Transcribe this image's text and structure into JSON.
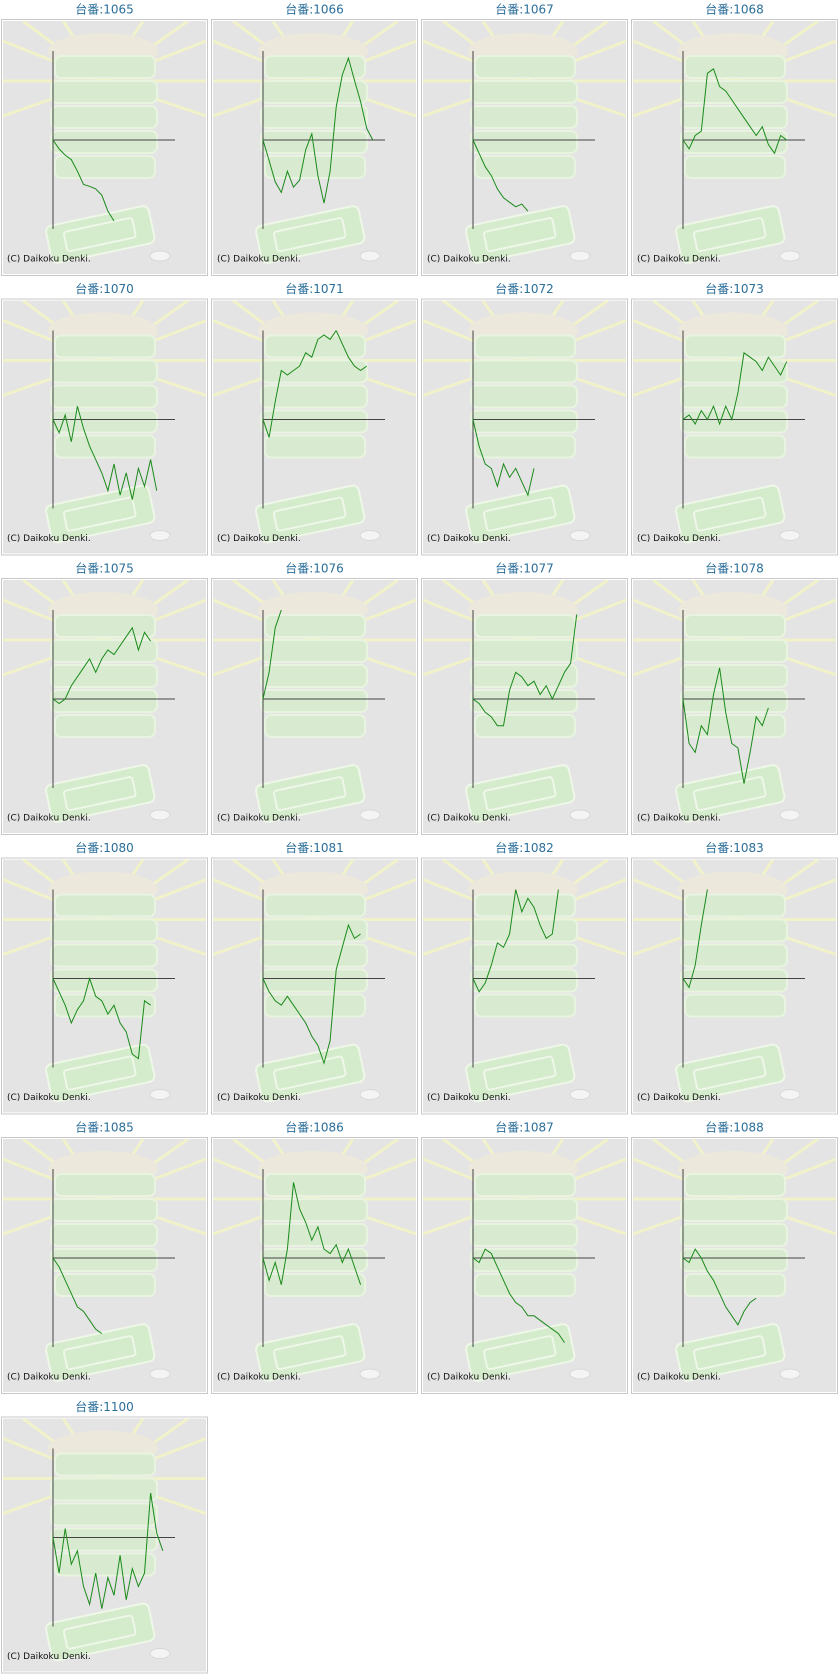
{
  "chart_data": [
    {
      "type": "line",
      "title": "台番:1065",
      "x": [
        0,
        5,
        10,
        15,
        20,
        25,
        30,
        35,
        40,
        45,
        50
      ],
      "values": [
        0,
        -10,
        -17,
        -22,
        -35,
        -50,
        -52,
        -55,
        -62,
        -80,
        -91
      ],
      "xlim": [
        0,
        100
      ],
      "ylim": [
        -100,
        100
      ],
      "color": "#1a8a1a",
      "credit": "(C) Daikoku Denki."
    },
    {
      "type": "line",
      "title": "台番:1066",
      "x": [
        0,
        5,
        10,
        15,
        20,
        25,
        30,
        35,
        40,
        45,
        50,
        55,
        60,
        65,
        70,
        75,
        80,
        85,
        90
      ],
      "values": [
        0,
        -23,
        -47,
        -59,
        -35,
        -53,
        -45,
        -11,
        7,
        -40,
        -71,
        -35,
        37,
        73,
        92,
        67,
        43,
        13,
        0
      ],
      "xlim": [
        0,
        100
      ],
      "ylim": [
        -100,
        100
      ],
      "color": "#1a8a1a",
      "credit": "(C) Daikoku Denki."
    },
    {
      "type": "line",
      "title": "台番:1067",
      "x": [
        0,
        5,
        10,
        15,
        20,
        25,
        30,
        35,
        40,
        45
      ],
      "values": [
        0,
        -15,
        -30,
        -40,
        -55,
        -65,
        -70,
        -75,
        -72,
        -80
      ],
      "xlim": [
        0,
        100
      ],
      "ylim": [
        -100,
        100
      ],
      "color": "#1a8a1a",
      "credit": "(C) Daikoku Denki."
    },
    {
      "type": "line",
      "title": "台番:1068",
      "x": [
        0,
        5,
        10,
        15,
        20,
        25,
        30,
        35,
        40,
        45,
        50,
        55,
        60,
        65,
        70,
        75,
        80,
        85
      ],
      "values": [
        0,
        -10,
        5,
        10,
        75,
        80,
        60,
        55,
        45,
        35,
        25,
        15,
        5,
        15,
        -5,
        -15,
        5,
        0
      ],
      "xlim": [
        0,
        100
      ],
      "ylim": [
        -100,
        100
      ],
      "color": "#1a8a1a",
      "credit": "(C) Daikoku Denki."
    },
    {
      "type": "line",
      "title": "台番:1070",
      "x": [
        0,
        5,
        10,
        15,
        20,
        25,
        30,
        35,
        40,
        45,
        50,
        55,
        60,
        65,
        70,
        75,
        80,
        85
      ],
      "values": [
        0,
        -15,
        5,
        -25,
        15,
        -10,
        -30,
        -45,
        -60,
        -80,
        -50,
        -85,
        -60,
        -90,
        -55,
        -75,
        -45,
        -80
      ],
      "xlim": [
        0,
        100
      ],
      "ylim": [
        -100,
        100
      ],
      "color": "#1a8a1a",
      "credit": "(C) Daikoku Denki."
    },
    {
      "type": "line",
      "title": "台番:1071",
      "x": [
        0,
        5,
        10,
        15,
        20,
        25,
        30,
        35,
        40,
        45,
        50,
        55,
        60,
        65,
        70,
        75,
        80,
        85
      ],
      "values": [
        0,
        -20,
        20,
        55,
        50,
        55,
        60,
        75,
        70,
        90,
        95,
        90,
        100,
        85,
        70,
        60,
        55,
        60
      ],
      "xlim": [
        0,
        100
      ],
      "ylim": [
        -100,
        100
      ],
      "color": "#1a8a1a",
      "credit": "(C) Daikoku Denki."
    },
    {
      "type": "line",
      "title": "台番:1072",
      "x": [
        0,
        5,
        10,
        15,
        20,
        25,
        30,
        35,
        40,
        45,
        50
      ],
      "values": [
        0,
        -30,
        -50,
        -55,
        -75,
        -50,
        -65,
        -55,
        -70,
        -85,
        -55
      ],
      "xlim": [
        0,
        100
      ],
      "ylim": [
        -100,
        100
      ],
      "color": "#1a8a1a",
      "credit": "(C) Daikoku Denki."
    },
    {
      "type": "line",
      "title": "台番:1073",
      "x": [
        0,
        5,
        10,
        15,
        20,
        25,
        30,
        35,
        40,
        45,
        50,
        55,
        60,
        65,
        70,
        75,
        80,
        85
      ],
      "values": [
        0,
        5,
        -5,
        10,
        0,
        15,
        -5,
        15,
        0,
        30,
        75,
        70,
        65,
        55,
        70,
        60,
        50,
        65
      ],
      "xlim": [
        0,
        100
      ],
      "ylim": [
        -100,
        100
      ],
      "color": "#1a8a1a",
      "credit": "(C) Daikoku Denki."
    },
    {
      "type": "line",
      "title": "台番:1075",
      "x": [
        0,
        5,
        10,
        15,
        20,
        25,
        30,
        35,
        40,
        45,
        50,
        55,
        60,
        65,
        70,
        75,
        80
      ],
      "values": [
        0,
        -5,
        0,
        15,
        25,
        35,
        45,
        30,
        45,
        55,
        50,
        60,
        70,
        80,
        55,
        75,
        65
      ],
      "xlim": [
        0,
        100
      ],
      "ylim": [
        -100,
        100
      ],
      "color": "#1a8a1a",
      "credit": "(C) Daikoku Denki."
    },
    {
      "type": "line",
      "title": "台番:1076",
      "x": [
        0,
        5,
        10,
        15
      ],
      "values": [
        0,
        30,
        80,
        100
      ],
      "xlim": [
        0,
        100
      ],
      "ylim": [
        -100,
        100
      ],
      "color": "#1a8a1a",
      "credit": "(C) Daikoku Denki."
    },
    {
      "type": "line",
      "title": "台番:1077",
      "x": [
        0,
        5,
        10,
        15,
        20,
        25,
        30,
        35,
        40,
        45,
        50,
        55,
        60,
        65,
        70,
        75,
        80,
        85
      ],
      "values": [
        0,
        -5,
        -15,
        -20,
        -30,
        -30,
        10,
        30,
        25,
        15,
        20,
        5,
        15,
        0,
        15,
        30,
        40,
        95
      ],
      "xlim": [
        0,
        100
      ],
      "ylim": [
        -100,
        100
      ],
      "color": "#1a8a1a",
      "credit": "(C) Daikoku Denki."
    },
    {
      "type": "line",
      "title": "台番:1078",
      "x": [
        0,
        5,
        10,
        15,
        20,
        25,
        30,
        35,
        40,
        45,
        50,
        55,
        60,
        65,
        70
      ],
      "values": [
        0,
        -50,
        -60,
        -30,
        -40,
        5,
        35,
        -15,
        -50,
        -55,
        -95,
        -60,
        -20,
        -30,
        -10
      ],
      "xlim": [
        0,
        100
      ],
      "ylim": [
        -100,
        100
      ],
      "color": "#1a8a1a",
      "credit": "(C) Daikoku Denki."
    },
    {
      "type": "line",
      "title": "台番:1080",
      "x": [
        0,
        5,
        10,
        15,
        20,
        25,
        30,
        35,
        40,
        45,
        50,
        55,
        60,
        65,
        70,
        75,
        80
      ],
      "values": [
        0,
        -15,
        -30,
        -50,
        -35,
        -25,
        0,
        -20,
        -25,
        -40,
        -30,
        -50,
        -60,
        -85,
        -90,
        -25,
        -30
      ],
      "xlim": [
        0,
        100
      ],
      "ylim": [
        -100,
        100
      ],
      "color": "#1a8a1a",
      "credit": "(C) Daikoku Denki."
    },
    {
      "type": "line",
      "title": "台番:1081",
      "x": [
        0,
        5,
        10,
        15,
        20,
        25,
        30,
        35,
        40,
        45,
        50,
        55,
        60,
        65,
        70,
        75,
        80
      ],
      "values": [
        0,
        -15,
        -25,
        -30,
        -20,
        -30,
        -40,
        -50,
        -65,
        -75,
        -95,
        -70,
        10,
        35,
        60,
        45,
        50
      ],
      "xlim": [
        0,
        100
      ],
      "ylim": [
        -100,
        100
      ],
      "color": "#1a8a1a",
      "credit": "(C) Daikoku Denki."
    },
    {
      "type": "line",
      "title": "台番:1082",
      "x": [
        0,
        5,
        10,
        15,
        20,
        25,
        30,
        35,
        40,
        45,
        50,
        55,
        60,
        65,
        70
      ],
      "values": [
        0,
        -15,
        -5,
        15,
        40,
        35,
        50,
        100,
        75,
        90,
        80,
        60,
        45,
        50,
        100
      ],
      "xlim": [
        0,
        100
      ],
      "ylim": [
        -100,
        100
      ],
      "color": "#1a8a1a",
      "credit": "(C) Daikoku Denki."
    },
    {
      "type": "line",
      "title": "台番:1083",
      "x": [
        0,
        5,
        10,
        15,
        20
      ],
      "values": [
        0,
        -10,
        15,
        60,
        100
      ],
      "xlim": [
        0,
        100
      ],
      "ylim": [
        -100,
        100
      ],
      "color": "#1a8a1a",
      "credit": "(C) Daikoku Denki."
    },
    {
      "type": "line",
      "title": "台番:1085",
      "x": [
        0,
        5,
        10,
        15,
        20,
        25,
        30,
        35,
        40
      ],
      "values": [
        0,
        -10,
        -25,
        -40,
        -55,
        -60,
        -70,
        -80,
        -85
      ],
      "xlim": [
        0,
        100
      ],
      "ylim": [
        -100,
        100
      ],
      "color": "#1a8a1a",
      "credit": "(C) Daikoku Denki."
    },
    {
      "type": "line",
      "title": "台番:1086",
      "x": [
        0,
        5,
        10,
        15,
        20,
        25,
        30,
        35,
        40,
        45,
        50,
        55,
        60,
        65,
        70,
        75,
        80
      ],
      "values": [
        0,
        -25,
        -5,
        -30,
        10,
        85,
        55,
        40,
        20,
        35,
        10,
        5,
        15,
        -5,
        10,
        -10,
        -30
      ],
      "xlim": [
        0,
        100
      ],
      "ylim": [
        -100,
        100
      ],
      "color": "#1a8a1a",
      "credit": "(C) Daikoku Denki."
    },
    {
      "type": "line",
      "title": "台番:1087",
      "x": [
        0,
        5,
        10,
        15,
        20,
        25,
        30,
        35,
        40,
        45,
        50,
        55,
        60,
        65,
        70,
        75
      ],
      "values": [
        0,
        -5,
        10,
        5,
        -10,
        -25,
        -40,
        -50,
        -55,
        -65,
        -65,
        -70,
        -75,
        -80,
        -85,
        -95
      ],
      "xlim": [
        0,
        100
      ],
      "ylim": [
        -100,
        100
      ],
      "color": "#1a8a1a",
      "credit": "(C) Daikoku Denki."
    },
    {
      "type": "line",
      "title": "台番:1088",
      "x": [
        0,
        5,
        10,
        15,
        20,
        25,
        30,
        35,
        40,
        45,
        50,
        55,
        60
      ],
      "values": [
        0,
        -5,
        10,
        0,
        -15,
        -25,
        -40,
        -55,
        -65,
        -75,
        -60,
        -50,
        -45
      ],
      "xlim": [
        0,
        100
      ],
      "ylim": [
        -100,
        100
      ],
      "color": "#1a8a1a",
      "credit": "(C) Daikoku Denki."
    },
    {
      "type": "line",
      "title": "台番:1100",
      "x": [
        0,
        5,
        10,
        15,
        20,
        25,
        30,
        35,
        40,
        45,
        50,
        55,
        60,
        65,
        70,
        75,
        80,
        85,
        90
      ],
      "values": [
        0,
        -40,
        10,
        -30,
        -15,
        -55,
        -75,
        -40,
        -80,
        -45,
        -65,
        -20,
        -70,
        -35,
        -55,
        -40,
        50,
        5,
        -15
      ],
      "xlim": [
        0,
        100
      ],
      "ylim": [
        -100,
        100
      ],
      "color": "#1a8a1a",
      "credit": "(C) Daikoku Denki."
    }
  ]
}
